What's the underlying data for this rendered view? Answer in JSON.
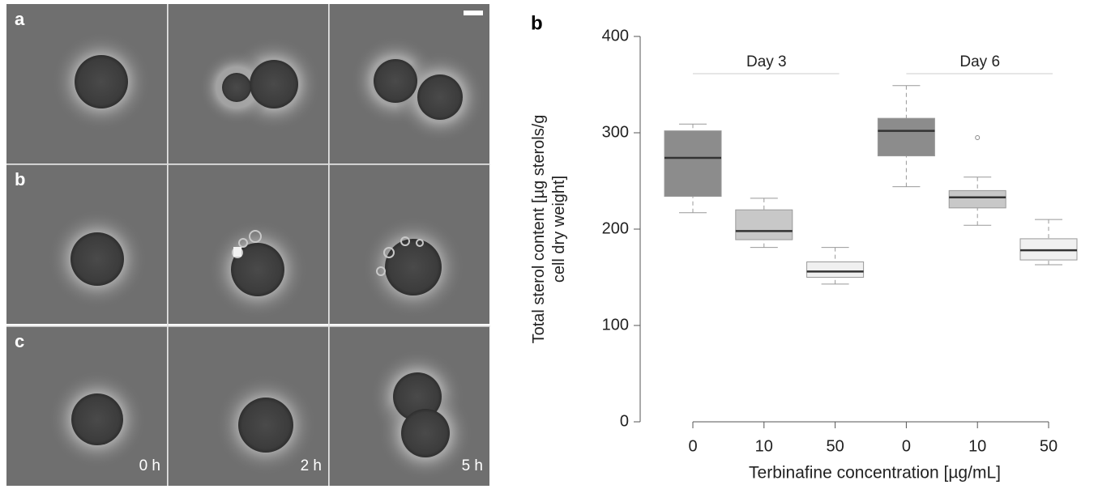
{
  "panels": {
    "rows": [
      "a",
      "b",
      "c"
    ],
    "times": [
      "0 h",
      "2 h",
      "5 h"
    ]
  },
  "chart_data": {
    "type": "box",
    "panel_label": "b",
    "ylabel": [
      "Total sterol content [µg sterols/g",
      "cell dry weight]"
    ],
    "xlabel": "Terbinafine concentration [µg/mL]",
    "groups": [
      "Day 3",
      "Day 6"
    ],
    "categories": [
      "0",
      "10",
      "50",
      "0",
      "10",
      "50"
    ],
    "boxes": [
      {
        "min": 217,
        "q1": 234,
        "median": 274,
        "q3": 302,
        "max": 309,
        "color": "#8c8c8c",
        "outliers": []
      },
      {
        "min": 181,
        "q1": 189,
        "median": 198,
        "q3": 220,
        "max": 232,
        "color": "#c8c8c8",
        "outliers": []
      },
      {
        "min": 143,
        "q1": 150,
        "median": 156,
        "q3": 166,
        "max": 181,
        "color": "#f0f0f0",
        "outliers": []
      },
      {
        "min": 244,
        "q1": 276,
        "median": 302,
        "q3": 315,
        "max": 349,
        "color": "#8c8c8c",
        "outliers": []
      },
      {
        "min": 204,
        "q1": 222,
        "median": 233,
        "q3": 240,
        "max": 254,
        "color": "#c8c8c8",
        "outliers": [
          295
        ]
      },
      {
        "min": 163,
        "q1": 168,
        "median": 178,
        "q3": 190,
        "max": 210,
        "color": "#f0f0f0",
        "outliers": []
      }
    ],
    "ylim": [
      0,
      400
    ],
    "yticks": [
      0,
      100,
      200,
      300,
      400
    ]
  }
}
